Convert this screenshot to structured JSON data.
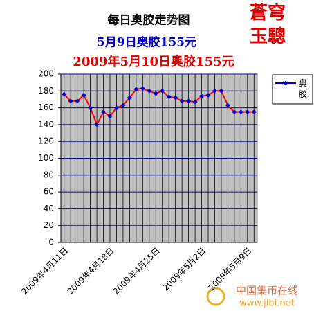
{
  "chart_data": {
    "type": "line",
    "title": "每日奥胶走势图",
    "subtitle": "5月9日奥胶155元",
    "annotation": "2009年5月10日奥胶155元",
    "logo_line1": "蒼穹",
    "logo_line2": "玉驄",
    "watermark_name": "中国集币在线",
    "watermark_url": "www.jibi.net",
    "categories": [
      "2009年4月11日",
      null,
      null,
      null,
      null,
      null,
      null,
      "2009年4月18日",
      null,
      null,
      null,
      null,
      null,
      null,
      "2009年4月25日",
      null,
      null,
      null,
      null,
      null,
      null,
      "2009年5月2日",
      null,
      null,
      null,
      null,
      null,
      null,
      "2009年5月9日",
      null
    ],
    "series": [
      {
        "name": "奥胶",
        "color": "#0000cc",
        "line_color": "#ff0000",
        "values": [
          176,
          168,
          168,
          175,
          160,
          140,
          155,
          150,
          160,
          163,
          172,
          182,
          183,
          180,
          177,
          180,
          173,
          172,
          168,
          168,
          167,
          174,
          175,
          180,
          180,
          163,
          155,
          155,
          155,
          155
        ]
      }
    ],
    "ylim": [
      0,
      200
    ],
    "yticks": [
      0,
      20,
      40,
      60,
      80,
      100,
      120,
      140,
      160,
      180,
      200
    ],
    "grid": true,
    "legend": "right"
  }
}
